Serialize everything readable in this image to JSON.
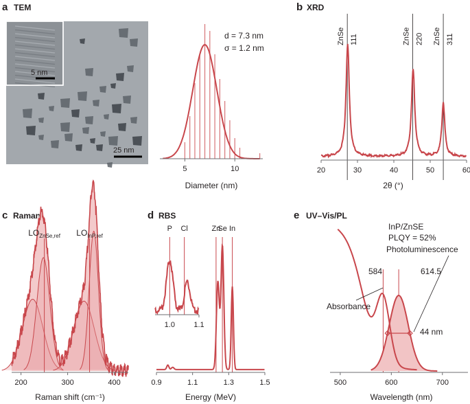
{
  "colors": {
    "accent": "#c8464b",
    "fill": "#f2c4c5",
    "fill_dark": "#e8a0a2",
    "ink": "#231f20",
    "grey": "#6d6e71",
    "tem_bg": "#9ea3a8"
  },
  "panels": {
    "a": {
      "letter": "a",
      "name": "TEM",
      "inset_scale": "5 nm",
      "main_scale": "25 nm"
    },
    "b": {
      "letter": "b",
      "name": "XRD"
    },
    "c": {
      "letter": "c",
      "name": "Raman"
    },
    "d": {
      "letter": "d",
      "name": "RBS"
    },
    "e": {
      "letter": "e",
      "name": "UV–Vis/PL"
    }
  },
  "chart_data": [
    {
      "id": "size-histogram",
      "type": "bar",
      "stat_d": "d = 7.3 nm",
      "stat_sigma": "σ = 1.2 nm",
      "xlabel": "Diameter (nm)",
      "xlim": [
        2.5,
        12.8
      ],
      "xticks": [
        "5",
        "10"
      ],
      "bins": [
        5.0,
        5.5,
        6.0,
        6.5,
        7.0,
        7.5,
        8.0,
        8.5,
        9.0,
        9.5,
        10.0,
        10.5,
        12.5
      ],
      "counts": [
        0.12,
        0.31,
        0.55,
        0.76,
        0.98,
        0.93,
        0.76,
        0.58,
        0.42,
        0.28,
        0.15,
        0.08,
        0.04
      ],
      "fit": {
        "type": "gaussian",
        "mu": 7.0,
        "sigma": 1.2,
        "peak": 0.83
      }
    },
    {
      "id": "xrd",
      "type": "line",
      "xlabel": "2θ (°)",
      "xlim": [
        20,
        60
      ],
      "xticks": [
        "20",
        "30",
        "40",
        "50",
        "60"
      ],
      "peaks": [
        {
          "center": 27.3,
          "height": 0.93,
          "width": 0.55
        },
        {
          "center": 45.3,
          "height": 0.72,
          "width": 0.55
        },
        {
          "center": 53.6,
          "height": 0.45,
          "width": 0.5
        }
      ],
      "reflections": [
        {
          "pos": 27.2,
          "material": "ZnSe",
          "hkl": "111"
        },
        {
          "pos": 45.2,
          "material": "ZnSe",
          "hkl": "220"
        },
        {
          "pos": 53.6,
          "material": "ZnSe",
          "hkl": "311"
        }
      ]
    },
    {
      "id": "raman",
      "type": "area",
      "xlabel": "Raman shift (cm⁻¹)",
      "xlim": [
        180,
        430
      ],
      "xticks": [
        "200",
        "300",
        "400"
      ],
      "components": [
        {
          "center": 225,
          "height": 0.38,
          "width": 22
        },
        {
          "center": 248,
          "height": 0.6,
          "width": 14
        },
        {
          "center": 335,
          "height": 0.37,
          "width": 22
        },
        {
          "center": 356,
          "height": 0.74,
          "width": 10
        }
      ],
      "refs": [
        {
          "pos": 250,
          "main": "LO",
          "sub": "ZnSe,ref"
        },
        {
          "pos": 347,
          "main": "LO",
          "sub": "InP,ref"
        }
      ]
    },
    {
      "id": "rbs",
      "type": "line",
      "xlabel": "Energy (MeV)",
      "xlim": [
        0.9,
        1.5
      ],
      "xticks": [
        "0.9",
        "1.1",
        "1.3",
        "1.5"
      ],
      "peaks": [
        {
          "center": 0.963,
          "height": 0.03,
          "width": 0.006
        },
        {
          "center": 0.99,
          "height": 0.015,
          "width": 0.007
        },
        {
          "center": 1.24,
          "height": 0.58,
          "width": 0.008
        },
        {
          "center": 1.265,
          "height": 0.82,
          "width": 0.008
        },
        {
          "center": 1.32,
          "height": 0.55,
          "width": 0.006
        }
      ],
      "element_lines": [
        {
          "pos": 1.23,
          "label": "Zn"
        },
        {
          "pos": 1.265,
          "label": "Se"
        },
        {
          "pos": 1.32,
          "label": "In"
        }
      ],
      "inset": {
        "xlim": [
          0.95,
          1.1
        ],
        "xticks": [
          "1.0",
          "1.1"
        ],
        "peaks": [
          {
            "center": 1.0,
            "height": 0.62,
            "width": 0.011
          },
          {
            "center": 1.06,
            "height": 0.34,
            "width": 0.01
          }
        ],
        "element_lines": [
          {
            "pos": 1.0,
            "label": "P"
          },
          {
            "pos": 1.05,
            "label": "Cl"
          }
        ]
      }
    },
    {
      "id": "uv-vis-pl",
      "type": "line",
      "xlabel": "Wavelength (nm)",
      "xlim": [
        480,
        750
      ],
      "xticks": [
        "500",
        "600",
        "700"
      ],
      "absorbance_label": "Absorbance",
      "pl_label": "Photoluminescence",
      "sample": "InP/ZnSE",
      "plqy": "PLQY = 52%",
      "abs_peak": "584",
      "pl_peak": "614.5",
      "fwhm": "44 nm",
      "abs_peak_nm": 584,
      "pl_peak_nm": 614.5,
      "fwhm_nm": 44
    }
  ]
}
